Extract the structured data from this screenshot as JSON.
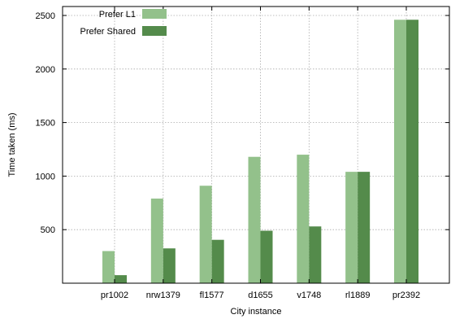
{
  "chart_data": {
    "type": "bar",
    "title": "",
    "xlabel": "City instance",
    "ylabel": "Time taken (ms)",
    "categories": [
      "pr1002",
      "nrw1379",
      "fl1577",
      "d1655",
      "v1748",
      "rl1889",
      "pr2392"
    ],
    "series": [
      {
        "name": "Prefer L1",
        "color": "#93c18b",
        "values": [
          300,
          790,
          910,
          1180,
          1200,
          1040,
          2460
        ]
      },
      {
        "name": "Prefer Shared",
        "color": "#548b4b",
        "values": [
          75,
          325,
          405,
          490,
          530,
          1040,
          2460
        ]
      }
    ],
    "ylim": [
      0,
      2500
    ],
    "yticks": [
      500,
      1000,
      1500,
      2000,
      2500
    ],
    "grid": true,
    "legend_position": "top-left"
  }
}
